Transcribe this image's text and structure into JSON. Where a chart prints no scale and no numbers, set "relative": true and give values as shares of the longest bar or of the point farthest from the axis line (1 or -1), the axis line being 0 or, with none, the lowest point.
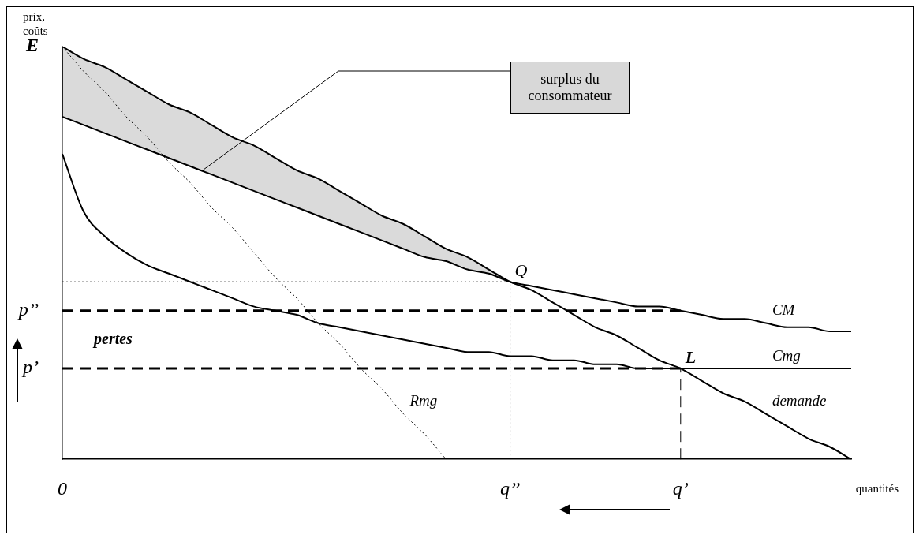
{
  "chart_data": {
    "type": "line",
    "relative": true,
    "xlabel": "quantités",
    "ylabel": "prix, coûts",
    "legend": false,
    "grid": false,
    "categories": [
      "0",
      null,
      null,
      null,
      null,
      null,
      null,
      null,
      null,
      null,
      null,
      null,
      null,
      null,
      null,
      null,
      null,
      null,
      null,
      null,
      null,
      "q’’",
      null,
      null,
      null,
      null,
      null,
      null,
      null,
      "q’",
      null,
      null,
      null,
      null,
      null,
      null,
      null,
      null
    ],
    "series": [
      {
        "name": "demande",
        "color": "#000000",
        "line_style": "solid",
        "values": [
          1,
          0.97,
          0.95,
          0.92,
          0.89,
          0.86,
          0.84,
          0.81,
          0.78,
          0.76,
          0.73,
          0.7,
          0.68,
          0.65,
          0.62,
          0.59,
          0.57,
          0.54,
          0.51,
          0.49,
          0.46,
          0.43,
          0.41,
          0.38,
          0.35,
          0.32,
          0.3,
          0.27,
          0.24,
          0.22,
          0.19,
          0.16,
          0.14,
          0.11,
          0.08,
          0.05,
          0.03,
          0
        ],
        "lower": [
          0.83,
          0.81,
          0.79,
          0.77,
          0.75,
          0.73,
          0.71,
          0.69,
          0.67,
          0.65,
          0.63,
          0.61,
          0.59,
          0.57,
          0.55,
          0.53,
          0.51,
          0.49,
          0.48,
          0.46,
          0.45,
          0.43,
          null,
          null,
          null,
          null,
          null,
          null,
          null,
          null,
          null,
          null,
          null,
          null,
          null,
          null,
          null,
          null
        ],
        "upper": [
          1,
          0.97,
          0.95,
          0.92,
          0.89,
          0.86,
          0.84,
          0.81,
          0.78,
          0.76,
          0.73,
          0.7,
          0.68,
          0.65,
          0.62,
          0.59,
          0.57,
          0.54,
          0.51,
          0.49,
          0.46,
          0.43,
          null,
          null,
          null,
          null,
          null,
          null,
          null,
          null,
          null,
          null,
          null,
          null,
          null,
          null,
          null,
          null
        ]
      },
      {
        "name": "CM",
        "color": "#000000",
        "line_style": "solid",
        "values": [
          0.83,
          0.81,
          0.79,
          0.77,
          0.75,
          0.73,
          0.71,
          0.69,
          0.67,
          0.65,
          0.63,
          0.61,
          0.59,
          0.57,
          0.55,
          0.53,
          0.51,
          0.49,
          0.48,
          0.46,
          0.45,
          0.43,
          0.42,
          0.41,
          0.4,
          0.39,
          0.38,
          0.37,
          0.37,
          0.36,
          0.35,
          0.34,
          0.34,
          0.33,
          0.32,
          0.32,
          0.31,
          0.31
        ]
      },
      {
        "name": "Cmg",
        "color": "#000000",
        "line_style": "solid",
        "values": [
          0.74,
          0.6,
          0.54,
          0.5,
          0.47,
          0.45,
          0.43,
          0.41,
          0.39,
          0.37,
          0.36,
          0.35,
          0.33,
          0.32,
          0.31,
          0.3,
          0.29,
          0.28,
          0.27,
          0.26,
          0.26,
          0.25,
          0.25,
          0.24,
          0.24,
          0.23,
          0.23,
          0.22,
          0.22,
          0.22,
          0.22,
          0.22,
          0.22,
          0.22,
          0.22,
          0.22,
          0.22,
          0.22
        ]
      },
      {
        "name": "Rmg",
        "color": "#000000",
        "line_style": "dotted",
        "values": [
          1,
          0.94,
          0.89,
          0.83,
          0.78,
          0.72,
          0.67,
          0.61,
          0.56,
          0.5,
          0.44,
          0.39,
          0.33,
          0.28,
          0.22,
          0.17,
          0.11,
          0.06,
          0,
          null,
          null,
          null,
          null,
          null,
          null,
          null,
          null,
          null,
          null,
          null,
          null,
          null,
          null,
          null,
          null,
          null,
          null,
          null
        ]
      },
      {
        "color": "#000000",
        "line_style": "dashed",
        "values": [
          0.36,
          0.36,
          0.36,
          0.36,
          0.36,
          0.36,
          0.36,
          0.36,
          0.36,
          0.36,
          0.36,
          0.36,
          0.36,
          0.36,
          0.36,
          0.36,
          0.36,
          0.36,
          0.36,
          0.36,
          0.36,
          0.36,
          0.36,
          0.36,
          0.36,
          0.36,
          0.36,
          0.36,
          0.36,
          0.36,
          null,
          null,
          null,
          null,
          null,
          null,
          null,
          null
        ]
      },
      {
        "color": "#000000",
        "line_style": "dashed",
        "values": [
          0.22,
          0.22,
          0.22,
          0.22,
          0.22,
          0.22,
          0.22,
          0.22,
          0.22,
          0.22,
          0.22,
          0.22,
          0.22,
          0.22,
          0.22,
          0.22,
          0.22,
          0.22,
          0.22,
          0.22,
          0.22,
          0.22,
          0.22,
          0.22,
          0.22,
          0.22,
          0.22,
          0.22,
          0.22,
          0.22,
          null,
          null,
          null,
          null,
          null,
          null,
          null,
          null
        ]
      },
      {
        "color": "#000000",
        "line_style": "dotted",
        "values": [
          0.43,
          0.43,
          0.43,
          0.43,
          0.43,
          0.43,
          0.43,
          0.43,
          0.43,
          0.43,
          0.43,
          0.43,
          0.43,
          0.43,
          0.43,
          0.43,
          0.43,
          0.43,
          0.43,
          0.43,
          0.43,
          0.43,
          null,
          null,
          null,
          null,
          null,
          null,
          null,
          null,
          null,
          null,
          null,
          null,
          null,
          null,
          null,
          null
        ]
      }
    ],
    "ref_lines": [
      {
        "axis": "x",
        "value": "q’’",
        "line_style": "dotted"
      },
      {
        "axis": "x",
        "value": "q’",
        "line_style": "dashed"
      }
    ],
    "annotations": [
      "surplus du consommateur",
      "pertes",
      "E",
      "p’’",
      "p’",
      {
        "text": "Q",
        "x": "q’’",
        "y": 0.43
      },
      {
        "text": "L",
        "x": "q’",
        "y": 0.22
      }
    ]
  }
}
